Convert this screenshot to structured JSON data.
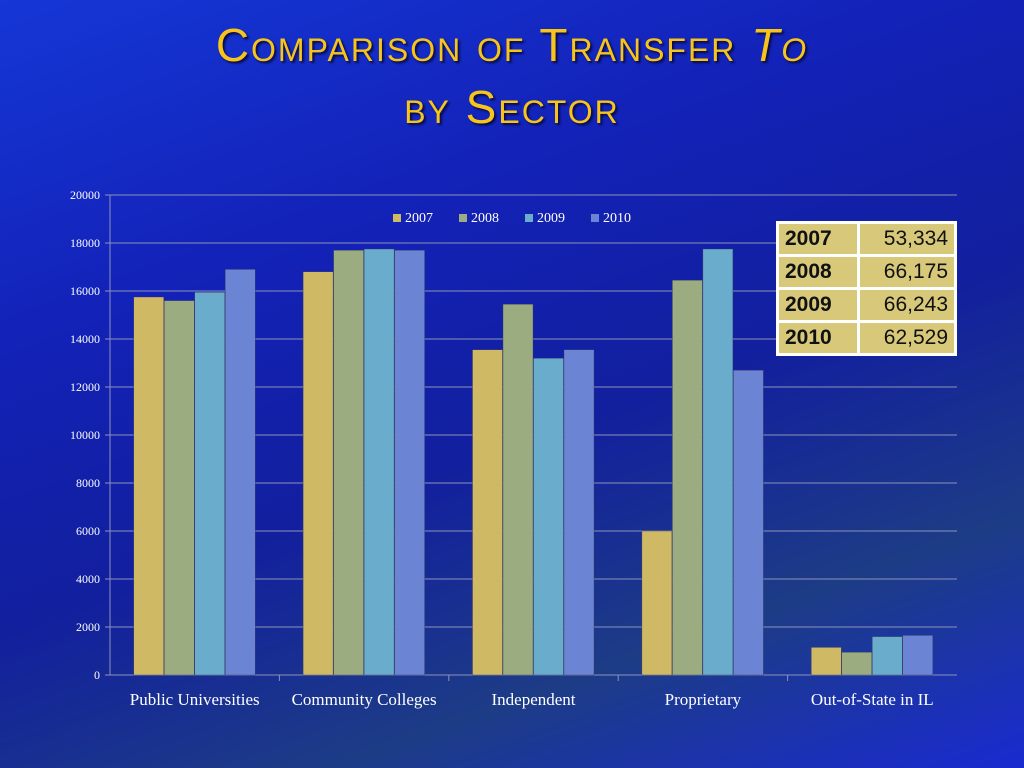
{
  "title": {
    "part1": "Comparison of Transfer ",
    "part2": "To",
    "part3": "by Sector"
  },
  "colors": {
    "background": "#1322b8",
    "title": "#f7c51a",
    "grid": "#8d92b8",
    "text": "#ffffff"
  },
  "chart_data": {
    "type": "bar",
    "title": "",
    "xlabel": "",
    "ylabel": "",
    "ylim": [
      0,
      20000
    ],
    "yticks": [
      "0",
      "2000",
      "4000",
      "6000",
      "8000",
      "10000",
      "12000",
      "14000",
      "16000",
      "18000",
      "20000"
    ],
    "grid": true,
    "legend_position": "top",
    "categories": [
      "Public Universities",
      "Community Colleges",
      "Independent",
      "Proprietary",
      "Out-of-State in IL"
    ],
    "series": [
      {
        "name": "2007",
        "color": "#d0b964",
        "values": [
          15750,
          16800,
          13550,
          6000,
          1150
        ]
      },
      {
        "name": "2008",
        "color": "#9bad80",
        "values": [
          15600,
          17700,
          15450,
          16450,
          950
        ]
      },
      {
        "name": "2009",
        "color": "#6aaccc",
        "values": [
          15950,
          17750,
          13200,
          17750,
          1600
        ]
      },
      {
        "name": "2010",
        "color": "#6b85d4",
        "values": [
          16900,
          17700,
          13550,
          12700,
          1650
        ]
      }
    ]
  },
  "totals_table": {
    "rows": [
      {
        "year": "2007",
        "total": "53,334"
      },
      {
        "year": "2008",
        "total": "66,175"
      },
      {
        "year": "2009",
        "total": "66,243"
      },
      {
        "year": "2010",
        "total": "62,529"
      }
    ]
  }
}
